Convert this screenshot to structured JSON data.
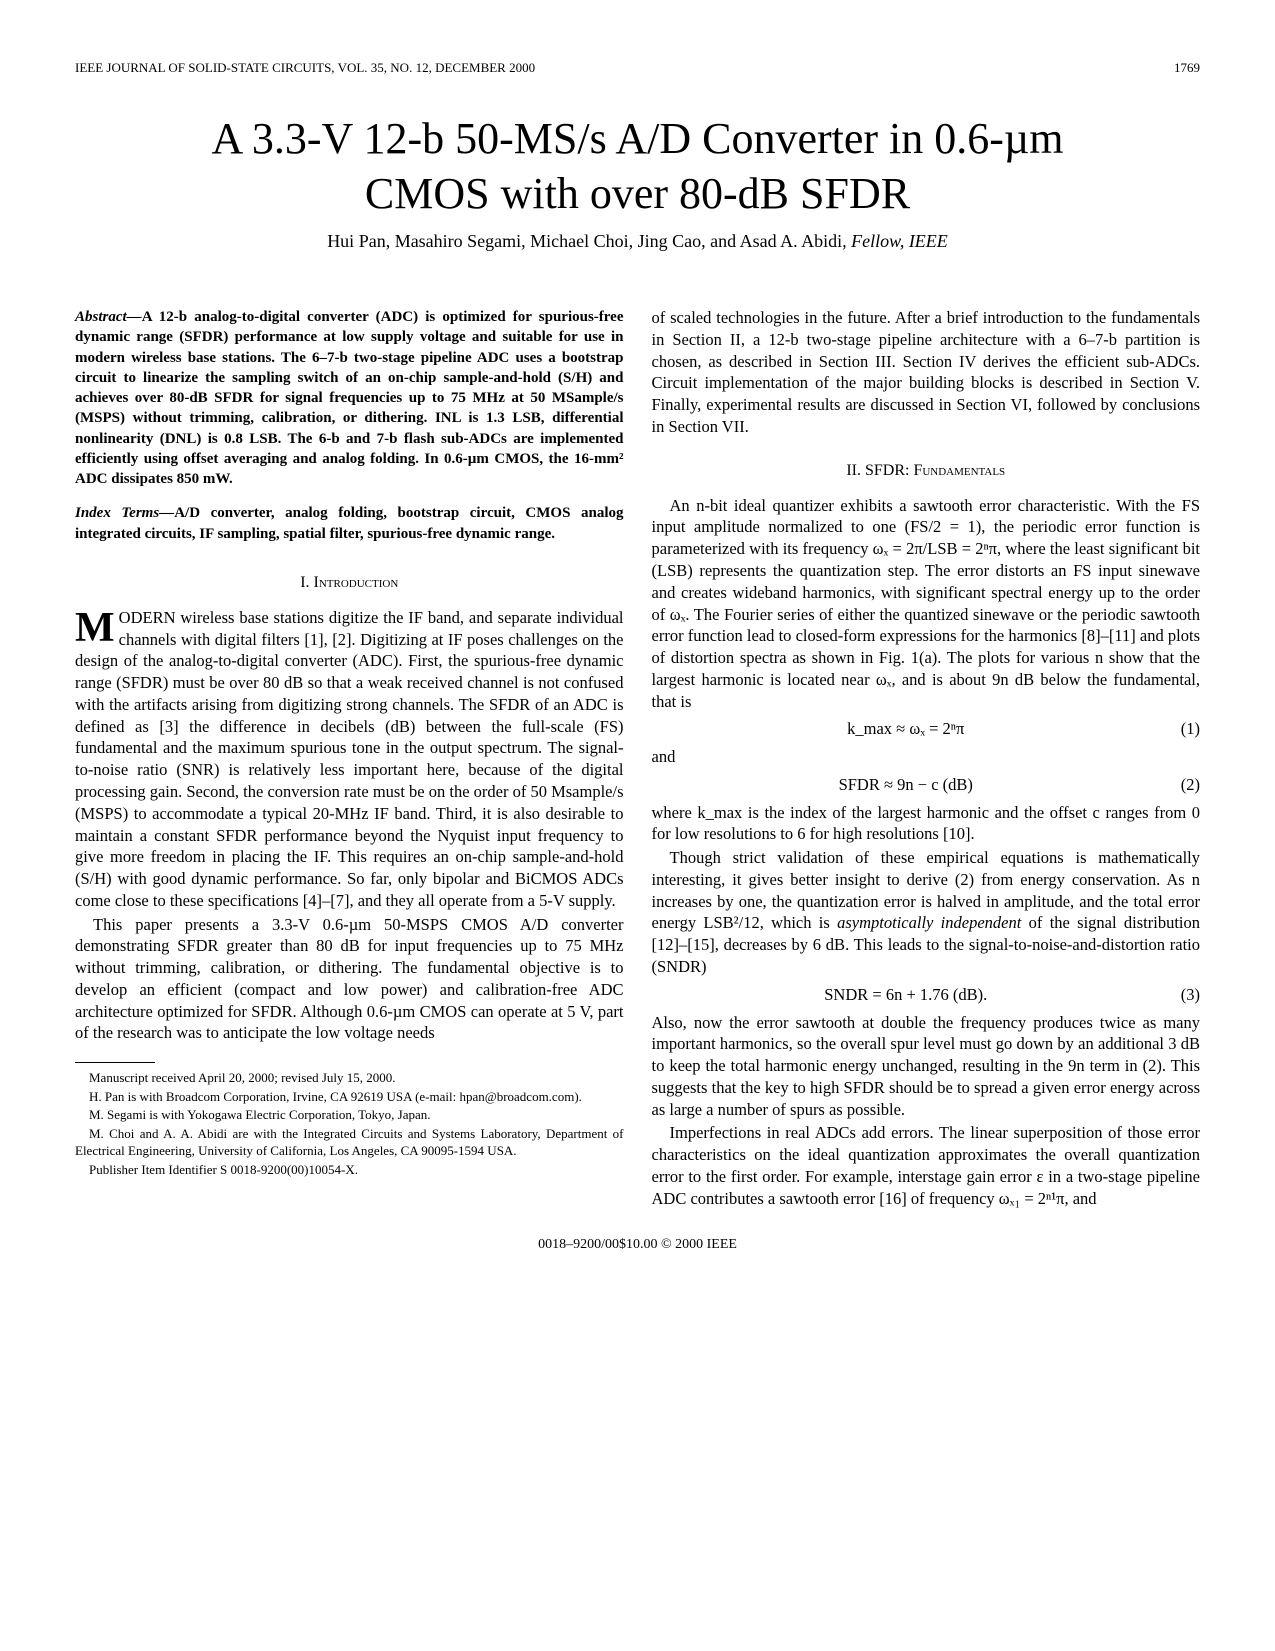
{
  "header": {
    "journal": "IEEE JOURNAL OF SOLID-STATE CIRCUITS, VOL. 35, NO. 12, DECEMBER 2000",
    "page": "1769"
  },
  "title_line1": "A 3.3-V 12-b 50-MS/s A/D Converter in 0.6-µm",
  "title_line2": "CMOS with over 80-dB SFDR",
  "authors_plain": "Hui Pan, Masahiro Segami, Michael Choi, Jing Cao, and Asad A. Abidi",
  "authors_suffix": ", Fellow, IEEE",
  "abstract": {
    "lead": "Abstract—",
    "text": "A 12-b analog-to-digital converter (ADC) is optimized for spurious-free dynamic range (SFDR) performance at low supply voltage and suitable for use in modern wireless base stations. The 6–7-b two-stage pipeline ADC uses a bootstrap circuit to linearize the sampling switch of an on-chip sample-and-hold (S/H) and achieves over 80-dB SFDR for signal frequencies up to 75 MHz at 50 MSample/s (MSPS) without trimming, calibration, or dithering. INL is 1.3 LSB, differential nonlinearity (DNL) is 0.8 LSB. The 6-b and 7-b flash sub-ADCs are implemented efficiently using offset averaging and analog folding. In 0.6-µm CMOS, the 16-mm² ADC dissipates 850 mW."
  },
  "index_terms": {
    "lead": "Index Terms—",
    "text": "A/D converter, analog folding, bootstrap circuit, CMOS analog integrated circuits, IF sampling, spatial filter, spurious-free dynamic range."
  },
  "sections": {
    "intro_heading": "I.  Introduction",
    "sfdr_heading": "II.  SFDR: Fundamentals"
  },
  "left": {
    "p1_first": "M",
    "p1_rest": "ODERN wireless base stations digitize the IF band, and separate individual channels with digital filters [1], [2]. Digitizing at IF poses challenges on the design of the analog-to-digital converter (ADC). First, the spurious-free dynamic range (SFDR) must be over 80 dB so that a weak received channel is not confused with the artifacts arising from digitizing strong channels. The SFDR of an ADC is defined as [3] the difference in decibels (dB) between the full-scale (FS) fundamental and the maximum spurious tone in the output spectrum. The signal-to-noise ratio (SNR) is relatively less important here, because of the digital processing gain. Second, the conversion rate must be on the order of 50 Msample/s (MSPS) to accommodate a typical 20-MHz IF band. Third, it is also desirable to maintain a constant SFDR performance beyond the Nyquist input frequency to give more freedom in placing the IF. This requires an on-chip sample-and-hold (S/H) with good dynamic performance. So far, only bipolar and BiCMOS ADCs come close to these specifications [4]–[7], and they all operate from a 5-V supply.",
    "p2": "This paper presents a 3.3-V 0.6-µm 50-MSPS CMOS A/D converter demonstrating SFDR greater than 80 dB for input frequencies up to 75 MHz without trimming, calibration, or dithering. The fundamental objective is to develop an efficient (compact and low power) and calibration-free ADC architecture optimized for SFDR. Although 0.6-µm CMOS can operate at 5 V, part of the research was to anticipate the low voltage needs"
  },
  "footnotes": {
    "f1": "Manuscript received April 20, 2000; revised July 15, 2000.",
    "f2": "H. Pan is with Broadcom Corporation, Irvine, CA 92619 USA (e-mail: hpan@broadcom.com).",
    "f3": "M. Segami is with Yokogawa Electric Corporation, Tokyo, Japan.",
    "f4": "M. Choi and A. A. Abidi are with the Integrated Circuits and Systems Laboratory, Department of Electrical Engineering, University of California, Los Angeles, CA 90095-1594 USA.",
    "f5": "Publisher Item Identifier S 0018-9200(00)10054-X."
  },
  "right": {
    "p1": "of scaled technologies in the future. After a brief introduction to the fundamentals in Section II, a 12-b two-stage pipeline architecture with a 6–7-b partition is chosen, as described in Section III. Section IV derives the efficient sub-ADCs. Circuit implementation of the major building blocks is described in Section V. Finally, experimental results are discussed in Section VI, followed by conclusions in Section VII.",
    "p2": "An n-bit ideal quantizer exhibits a sawtooth error characteristic. With the FS input amplitude normalized to one (FS/2 = 1), the periodic error function is parameterized with its frequency ωₓ = 2π/LSB = 2ⁿπ, where the least significant bit (LSB) represents the quantization step. The error distorts an FS input sinewave and creates wideband harmonics, with significant spectral energy up to the order of ωₓ. The Fourier series of either the quantized sinewave or the periodic sawtooth error function lead to closed-form expressions for the harmonics [8]–[11] and plots of distortion spectra as shown in Fig. 1(a). The plots for various n show that the largest harmonic is located near ωₓ, and is about 9n dB below the fundamental, that is",
    "eq1": "k_max ≈ ωₓ = 2ⁿπ",
    "eq1num": "(1)",
    "and": "and",
    "eq2": "SFDR ≈ 9n − c   (dB)",
    "eq2num": "(2)",
    "p3": "where k_max is the index of the largest harmonic and the offset c ranges from 0 for low resolutions to 6 for high resolutions [10].",
    "p4a": "Though strict validation of these empirical equations is mathematically interesting, it gives better insight to derive (2) from energy conservation. As n increases by one, the quantization error is halved in amplitude, and the total error energy LSB²/12, which is ",
    "p4i": "asymptotically independent",
    "p4b": " of the signal distribution [12]–[15], decreases by 6 dB. This leads to the signal-to-noise-and-distortion ratio (SNDR)",
    "eq3": "SNDR = 6n + 1.76   (dB).",
    "eq3num": "(3)",
    "p5": "Also, now the error sawtooth at double the frequency produces twice as many important harmonics, so the overall spur level must go down by an additional 3 dB to keep the total harmonic energy unchanged, resulting in the 9n term in (2). This suggests that the key to high SFDR should be to spread a given error energy across as large a number of spurs as possible.",
    "p6": "Imperfections in real ADCs add errors. The linear superposition of those error characteristics on the ideal quantization approximates the overall quantization error to the first order. For example, interstage gain error ε in a two-stage pipeline ADC contributes a sawtooth error [16] of frequency ωₓ₁ = 2ⁿ¹π, and"
  },
  "copyright": "0018–9200/00$10.00 © 2000 IEEE"
}
